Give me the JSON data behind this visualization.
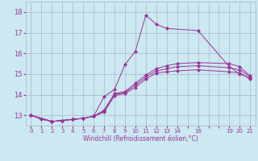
{
  "xlabel": "Windchill (Refroidissement éolien,°C)",
  "background_color": "#cce8f0",
  "grid_color": "#aab8cc",
  "line_color": "#993399",
  "xlim": [
    -0.5,
    21.5
  ],
  "ylim": [
    12.5,
    18.5
  ],
  "yticks": [
    13,
    14,
    15,
    16,
    17,
    18
  ],
  "xtick_positions": [
    0,
    1,
    2,
    3,
    4,
    5,
    6,
    7,
    8,
    9,
    10,
    11,
    12,
    13,
    14,
    15,
    16,
    17,
    18,
    19,
    20,
    21
  ],
  "xtick_labels": [
    "0",
    "1",
    "2",
    "3",
    "4",
    "5",
    "6",
    "7",
    "8",
    "9",
    "10",
    "11",
    "12",
    "13",
    "14",
    "",
    "16",
    "",
    "",
    "19",
    "20",
    "21"
  ],
  "lines": [
    {
      "x": [
        0,
        1,
        2,
        3,
        4,
        5,
        6,
        7,
        8,
        9,
        10,
        11,
        12,
        13,
        16,
        19,
        20,
        21
      ],
      "y": [
        13.0,
        12.8,
        12.7,
        12.75,
        12.8,
        12.85,
        12.95,
        13.9,
        14.25,
        15.45,
        16.1,
        17.85,
        17.4,
        17.2,
        17.1,
        15.35,
        15.0,
        14.8
      ]
    },
    {
      "x": [
        0,
        2,
        3,
        4,
        5,
        6,
        7,
        8,
        9,
        10,
        11,
        12,
        13,
        14,
        16,
        19,
        20,
        21
      ],
      "y": [
        13.0,
        12.7,
        12.75,
        12.8,
        12.85,
        12.95,
        13.15,
        13.95,
        14.05,
        14.35,
        14.75,
        15.05,
        15.1,
        15.15,
        15.2,
        15.1,
        15.05,
        14.75
      ]
    },
    {
      "x": [
        0,
        2,
        3,
        4,
        5,
        6,
        7,
        8,
        9,
        10,
        11,
        12,
        13,
        14,
        16,
        19,
        20,
        21
      ],
      "y": [
        13.0,
        12.7,
        12.75,
        12.8,
        12.85,
        12.95,
        13.2,
        14.0,
        14.1,
        14.45,
        14.85,
        15.15,
        15.25,
        15.35,
        15.4,
        15.3,
        15.2,
        14.85
      ]
    },
    {
      "x": [
        0,
        2,
        3,
        4,
        5,
        6,
        7,
        8,
        9,
        10,
        11,
        12,
        13,
        14,
        16,
        19,
        20,
        21
      ],
      "y": [
        13.0,
        12.7,
        12.75,
        12.8,
        12.85,
        12.95,
        13.25,
        14.05,
        14.15,
        14.55,
        14.95,
        15.25,
        15.4,
        15.5,
        15.55,
        15.5,
        15.35,
        14.9
      ]
    }
  ]
}
